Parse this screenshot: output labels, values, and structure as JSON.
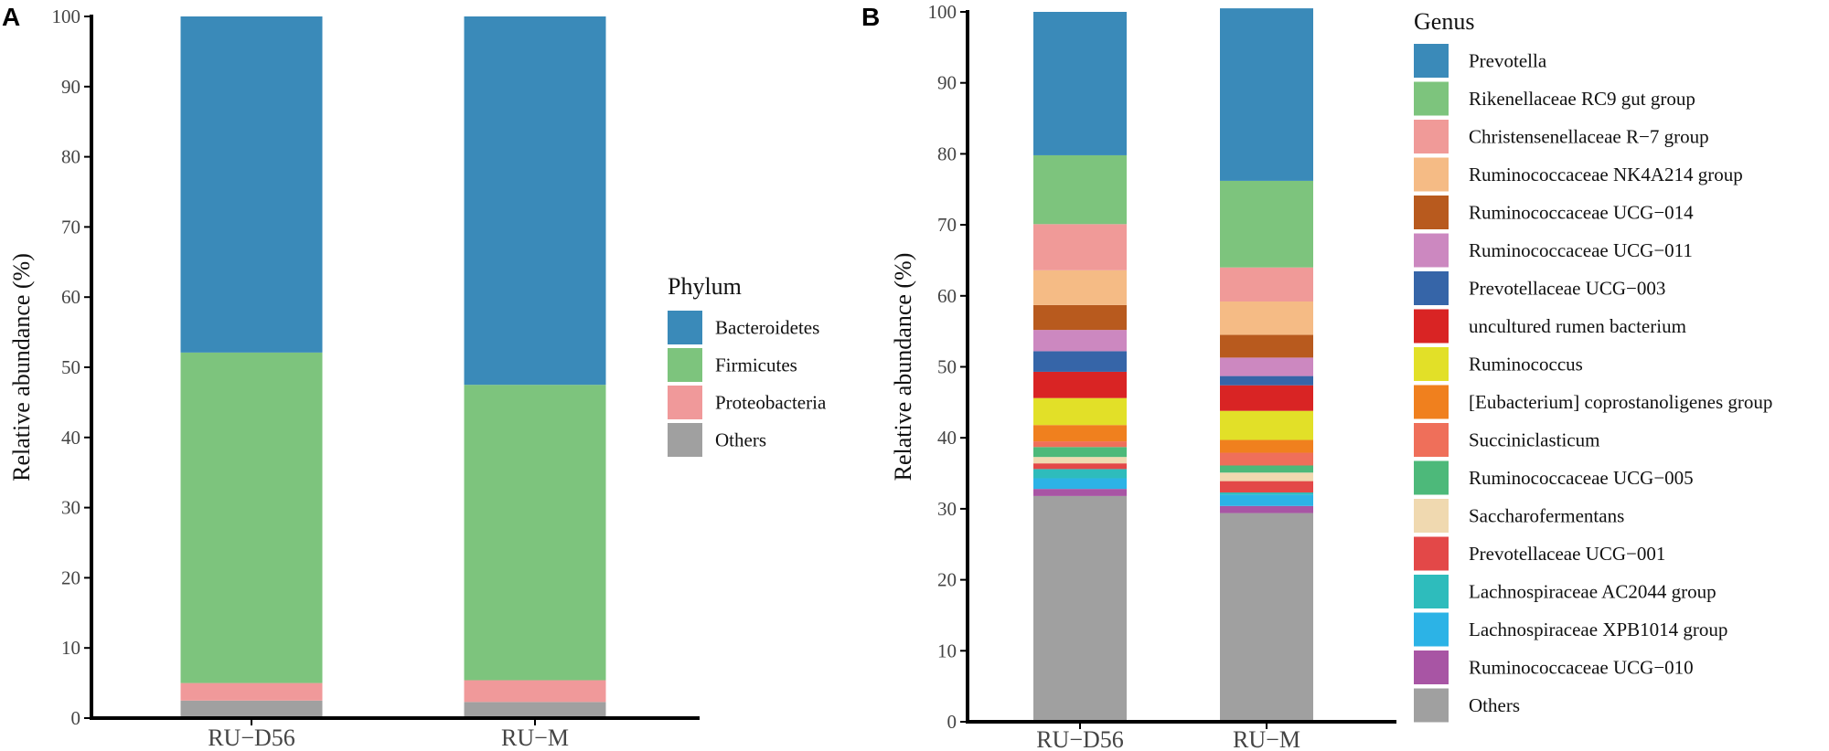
{
  "chart_data": [
    {
      "panel_label": "A",
      "type": "bar",
      "stacked": true,
      "ylabel": "Relative abundance (%)",
      "xlabel": "",
      "ylim": [
        0,
        100
      ],
      "yticks": [
        "0",
        "10",
        "20",
        "30",
        "40",
        "50",
        "60",
        "70",
        "80",
        "90",
        "100"
      ],
      "categories": [
        "RU−D56",
        "RU−M"
      ],
      "legend_title": "Phylum",
      "legend_position": "right",
      "series": [
        {
          "name": "Others",
          "color": "#a0a0a0",
          "values": [
            2.5,
            2.3
          ]
        },
        {
          "name": "Proteobacteria",
          "color": "#f0999a",
          "values": [
            2.5,
            3.1
          ]
        },
        {
          "name": "Firmicutes",
          "color": "#7dc47d",
          "values": [
            47.1,
            42.1
          ]
        },
        {
          "name": "Bacteroidetes",
          "color": "#3a8ab9",
          "values": [
            47.9,
            52.5
          ]
        }
      ],
      "legend_order": [
        "Bacteroidetes",
        "Firmicutes",
        "Proteobacteria",
        "Others"
      ]
    },
    {
      "panel_label": "B",
      "type": "bar",
      "stacked": true,
      "ylabel": "Relative abundance (%)",
      "xlabel": "",
      "ylim": [
        0,
        100
      ],
      "yticks": [
        "0",
        "10",
        "20",
        "30",
        "40",
        "50",
        "60",
        "70",
        "80",
        "90",
        "100"
      ],
      "categories": [
        "RU−D56",
        "RU−M"
      ],
      "legend_title": "Genus",
      "legend_position": "right",
      "series": [
        {
          "name": "Others",
          "color": "#a0a0a0",
          "values": [
            31.8,
            29.4
          ]
        },
        {
          "name": "Ruminococcaceae UCG−010",
          "color": "#a855a4",
          "values": [
            1.0,
            1.0
          ]
        },
        {
          "name": "Lachnospiraceae XPB1014 group",
          "color": "#2cb3e6",
          "values": [
            1.5,
            1.6
          ]
        },
        {
          "name": "Lachnospiraceae AC2044 group",
          "color": "#2ebcbc",
          "values": [
            1.3,
            0.3
          ]
        },
        {
          "name": "Prevotellaceae UCG−001",
          "color": "#e34848",
          "values": [
            0.8,
            1.6
          ]
        },
        {
          "name": "Saccharofermentans",
          "color": "#f0d9b0",
          "values": [
            0.9,
            1.2
          ]
        },
        {
          "name": "Ruminococcaceae UCG−005",
          "color": "#4db97a",
          "values": [
            1.4,
            1.0
          ]
        },
        {
          "name": "Succiniclasticum",
          "color": "#ef6f5a",
          "values": [
            0.8,
            1.8
          ]
        },
        {
          "name": "[Eubacterium] coprostanoligenes group",
          "color": "#f0801e",
          "values": [
            2.3,
            1.8
          ]
        },
        {
          "name": "Ruminococcus",
          "color": "#e2e028",
          "values": [
            3.8,
            4.1
          ]
        },
        {
          "name": "uncultured rumen bacterium",
          "color": "#d92424",
          "values": [
            3.7,
            3.6
          ]
        },
        {
          "name": "Prevotellaceae UCG−003",
          "color": "#3665a8",
          "values": [
            2.9,
            1.3
          ]
        },
        {
          "name": "Ruminococcaceae UCG−011",
          "color": "#cc88c0",
          "values": [
            3.0,
            2.6
          ]
        },
        {
          "name": "Ruminococcaceae UCG−014",
          "color": "#b85a1e",
          "values": [
            3.5,
            3.2
          ]
        },
        {
          "name": "Ruminococcaceae NK4A214 group",
          "color": "#f5bb85",
          "values": [
            4.9,
            4.7
          ]
        },
        {
          "name": "Christensenellaceae R−7 group",
          "color": "#f09a98",
          "values": [
            6.5,
            4.8
          ]
        },
        {
          "name": "Rikenellaceae RC9 gut group",
          "color": "#7dc47d",
          "values": [
            9.7,
            12.2
          ]
        },
        {
          "name": "Prevotella",
          "color": "#3a8ab9",
          "values": [
            20.2,
            24.3
          ]
        }
      ],
      "legend_order": [
        "Prevotella",
        "Rikenellaceae RC9 gut group",
        "Christensenellaceae R−7 group",
        "Ruminococcaceae NK4A214 group",
        "Ruminococcaceae UCG−014",
        "Ruminococcaceae UCG−011",
        "Prevotellaceae UCG−003",
        "uncultured rumen bacterium",
        "Ruminococcus",
        "[Eubacterium] coprostanoligenes group",
        "Succiniclasticum",
        "Ruminococcaceae UCG−005",
        "Saccharofermentans",
        "Prevotellaceae UCG−001",
        "Lachnospiraceae AC2044 group",
        "Lachnospiraceae XPB1014 group",
        "Ruminococcaceae UCG−010",
        "Others"
      ]
    }
  ]
}
